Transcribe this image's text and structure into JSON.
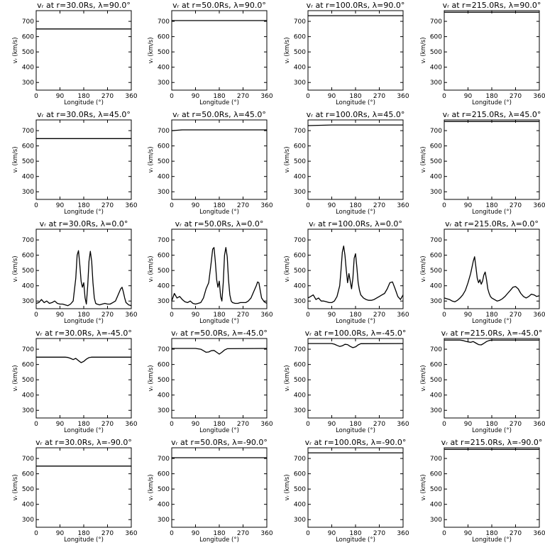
{
  "chart_data": [
    {
      "type": "line",
      "row": 0,
      "col": 0,
      "title": "vᵣ at r=30.0Rs, λ=90.0°",
      "xlabel": "Longitude (°)",
      "ylabel": "vᵣ (km/s)",
      "xlim": [
        0,
        360
      ],
      "ylim": [
        250,
        770
      ],
      "xticks": [
        0,
        90,
        180,
        270,
        360
      ],
      "yticks": [
        300,
        400,
        500,
        600,
        700
      ],
      "x": [
        0,
        360
      ],
      "y": [
        650,
        650
      ]
    },
    {
      "type": "line",
      "row": 0,
      "col": 1,
      "title": "vᵣ at r=50.0Rs, λ=90.0°",
      "xlabel": "Longitude (°)",
      "ylabel": "vᵣ (km/s)",
      "xlim": [
        0,
        360
      ],
      "ylim": [
        250,
        770
      ],
      "xticks": [
        0,
        90,
        180,
        270,
        360
      ],
      "yticks": [
        300,
        400,
        500,
        600,
        700
      ],
      "x": [
        0,
        360
      ],
      "y": [
        705,
        705
      ]
    },
    {
      "type": "line",
      "row": 0,
      "col": 2,
      "title": "vᵣ at r=100.0Rs, λ=90.0°",
      "xlabel": "Longitude (°)",
      "ylabel": "vᵣ (km/s)",
      "xlim": [
        0,
        360
      ],
      "ylim": [
        250,
        770
      ],
      "xticks": [
        0,
        90,
        180,
        270,
        360
      ],
      "yticks": [
        300,
        400,
        500,
        600,
        700
      ],
      "x": [
        0,
        360
      ],
      "y": [
        737,
        737
      ]
    },
    {
      "type": "line",
      "row": 0,
      "col": 3,
      "title": "vᵣ at r=215.0Rs, λ=90.0°",
      "xlabel": "Longitude (°)",
      "ylabel": "vᵣ (km/s)",
      "xlim": [
        0,
        360
      ],
      "ylim": [
        250,
        770
      ],
      "xticks": [
        0,
        90,
        180,
        270,
        360
      ],
      "yticks": [
        300,
        400,
        500,
        600,
        700
      ],
      "x": [
        0,
        360
      ],
      "y": [
        760,
        760
      ]
    },
    {
      "type": "line",
      "row": 1,
      "col": 0,
      "title": "vᵣ at r=30.0Rs, λ=45.0°",
      "xlabel": "Longitude (°)",
      "ylabel": "vᵣ (km/s)",
      "xlim": [
        0,
        360
      ],
      "ylim": [
        250,
        770
      ],
      "xticks": [
        0,
        90,
        180,
        270,
        360
      ],
      "yticks": [
        300,
        400,
        500,
        600,
        700
      ],
      "x": [
        0,
        360
      ],
      "y": [
        648,
        648
      ]
    },
    {
      "type": "line",
      "row": 1,
      "col": 1,
      "title": "vᵣ at r=50.0Rs, λ=45.0°",
      "xlabel": "Longitude (°)",
      "ylabel": "vᵣ (km/s)",
      "xlim": [
        0,
        360
      ],
      "ylim": [
        250,
        770
      ],
      "xticks": [
        0,
        90,
        180,
        270,
        360
      ],
      "yticks": [
        300,
        400,
        500,
        600,
        700
      ],
      "x": [
        0,
        40,
        360
      ],
      "y": [
        700,
        705,
        705
      ]
    },
    {
      "type": "line",
      "row": 1,
      "col": 2,
      "title": "vᵣ at r=100.0Rs, λ=45.0°",
      "xlabel": "Longitude (°)",
      "ylabel": "vᵣ (km/s)",
      "xlim": [
        0,
        360
      ],
      "ylim": [
        250,
        770
      ],
      "xticks": [
        0,
        90,
        180,
        270,
        360
      ],
      "yticks": [
        300,
        400,
        500,
        600,
        700
      ],
      "x": [
        0,
        90,
        360
      ],
      "y": [
        733,
        737,
        737
      ]
    },
    {
      "type": "line",
      "row": 1,
      "col": 3,
      "title": "vᵣ at r=215.0Rs, λ=45.0°",
      "xlabel": "Longitude (°)",
      "ylabel": "vᵣ (km/s)",
      "xlim": [
        0,
        360
      ],
      "ylim": [
        250,
        770
      ],
      "xticks": [
        0,
        90,
        180,
        270,
        360
      ],
      "yticks": [
        300,
        400,
        500,
        600,
        700
      ],
      "x": [
        0,
        360
      ],
      "y": [
        760,
        760
      ]
    },
    {
      "type": "line",
      "row": 2,
      "col": 0,
      "title": "vᵣ at r=30.0Rs, λ=0.0°",
      "xlabel": "Longitude (°)",
      "ylabel": "vᵣ (km/s)",
      "xlim": [
        0,
        360
      ],
      "ylim": [
        250,
        770
      ],
      "xticks": [
        0,
        90,
        180,
        270,
        360
      ],
      "yticks": [
        300,
        400,
        500,
        600,
        700
      ],
      "x": [
        0,
        10,
        20,
        30,
        40,
        50,
        60,
        70,
        80,
        90,
        100,
        110,
        120,
        130,
        140,
        150,
        155,
        160,
        165,
        170,
        175,
        180,
        185,
        190,
        195,
        200,
        205,
        210,
        215,
        220,
        225,
        230,
        240,
        250,
        260,
        270,
        280,
        290,
        300,
        310,
        320,
        325,
        330,
        335,
        340,
        350,
        360
      ],
      "y": [
        285,
        290,
        310,
        290,
        300,
        285,
        290,
        300,
        285,
        280,
        280,
        275,
        270,
        280,
        300,
        450,
        600,
        630,
        540,
        430,
        390,
        420,
        320,
        280,
        400,
        560,
        625,
        560,
        420,
        320,
        285,
        280,
        275,
        280,
        285,
        280,
        280,
        290,
        300,
        340,
        380,
        390,
        360,
        320,
        290,
        275,
        270
      ]
    },
    {
      "type": "line",
      "row": 2,
      "col": 1,
      "title": "vᵣ at r=50.0Rs, λ=0.0°",
      "xlabel": "Longitude (°)",
      "ylabel": "vᵣ (km/s)",
      "xlim": [
        0,
        360
      ],
      "ylim": [
        250,
        770
      ],
      "xticks": [
        0,
        90,
        180,
        270,
        360
      ],
      "yticks": [
        300,
        400,
        500,
        600,
        700
      ],
      "x": [
        0,
        10,
        20,
        30,
        40,
        50,
        60,
        70,
        80,
        90,
        100,
        110,
        120,
        130,
        140,
        150,
        155,
        160,
        165,
        170,
        175,
        180,
        185,
        190,
        195,
        200,
        205,
        210,
        215,
        220,
        225,
        230,
        240,
        250,
        260,
        270,
        280,
        290,
        300,
        310,
        320,
        325,
        330,
        335,
        340,
        350,
        360
      ],
      "y": [
        300,
        350,
        320,
        330,
        310,
        295,
        290,
        300,
        285,
        280,
        285,
        290,
        320,
        380,
        420,
        560,
        640,
        650,
        560,
        440,
        390,
        430,
        330,
        300,
        420,
        600,
        650,
        590,
        440,
        340,
        300,
        290,
        285,
        285,
        290,
        290,
        290,
        300,
        320,
        360,
        400,
        425,
        420,
        370,
        320,
        295,
        285
      ]
    },
    {
      "type": "line",
      "row": 2,
      "col": 2,
      "title": "vᵣ at r=100.0Rs, λ=0.0°",
      "xlabel": "Longitude (°)",
      "ylabel": "vᵣ (km/s)",
      "xlim": [
        0,
        360
      ],
      "ylim": [
        250,
        770
      ],
      "xticks": [
        0,
        90,
        180,
        270,
        360
      ],
      "yticks": [
        300,
        400,
        500,
        600,
        700
      ],
      "x": [
        0,
        10,
        20,
        30,
        40,
        50,
        60,
        70,
        80,
        90,
        100,
        110,
        120,
        125,
        130,
        135,
        140,
        145,
        150,
        155,
        160,
        165,
        170,
        175,
        180,
        185,
        190,
        195,
        200,
        210,
        220,
        230,
        240,
        250,
        260,
        270,
        280,
        290,
        300,
        310,
        320,
        330,
        340,
        350,
        360
      ],
      "y": [
        320,
        330,
        340,
        310,
        320,
        300,
        300,
        295,
        290,
        290,
        300,
        330,
        400,
        500,
        620,
        660,
        600,
        500,
        420,
        480,
        430,
        380,
        450,
        580,
        610,
        520,
        420,
        370,
        340,
        320,
        310,
        305,
        305,
        310,
        320,
        330,
        340,
        350,
        380,
        420,
        425,
        380,
        330,
        310,
        340
      ]
    },
    {
      "type": "line",
      "row": 2,
      "col": 3,
      "title": "vᵣ at r=215.0Rs, λ=0.0°",
      "xlabel": "Longitude (°)",
      "ylabel": "vᵣ (km/s)",
      "xlim": [
        0,
        360
      ],
      "ylim": [
        250,
        770
      ],
      "xticks": [
        0,
        90,
        180,
        270,
        360
      ],
      "yticks": [
        300,
        400,
        500,
        600,
        700
      ],
      "x": [
        0,
        10,
        20,
        30,
        40,
        50,
        60,
        70,
        80,
        90,
        100,
        110,
        115,
        120,
        125,
        130,
        135,
        140,
        145,
        150,
        155,
        160,
        165,
        170,
        175,
        180,
        190,
        200,
        210,
        220,
        230,
        240,
        250,
        260,
        270,
        280,
        290,
        300,
        310,
        320,
        330,
        340,
        350,
        360
      ],
      "y": [
        320,
        315,
        310,
        300,
        295,
        305,
        320,
        340,
        370,
        420,
        480,
        560,
        590,
        520,
        450,
        420,
        440,
        410,
        430,
        470,
        490,
        440,
        380,
        350,
        330,
        320,
        310,
        300,
        305,
        315,
        330,
        350,
        370,
        390,
        395,
        380,
        350,
        330,
        320,
        330,
        345,
        340,
        330,
        335
      ]
    },
    {
      "type": "line",
      "row": 3,
      "col": 0,
      "title": "vᵣ at r=30.0Rs, λ=-45.0°",
      "xlabel": "Longitude (°)",
      "ylabel": "vᵣ (km/s)",
      "xlim": [
        0,
        360
      ],
      "ylim": [
        250,
        770
      ],
      "xticks": [
        0,
        90,
        180,
        270,
        360
      ],
      "yticks": [
        300,
        400,
        500,
        600,
        700
      ],
      "x": [
        0,
        110,
        120,
        130,
        140,
        150,
        160,
        170,
        180,
        190,
        200,
        210,
        360
      ],
      "y": [
        648,
        648,
        646,
        640,
        632,
        640,
        625,
        612,
        620,
        635,
        645,
        648,
        648
      ]
    },
    {
      "type": "line",
      "row": 3,
      "col": 1,
      "title": "vᵣ at r=50.0Rs, λ=-45.0°",
      "xlabel": "Longitude (°)",
      "ylabel": "vᵣ (km/s)",
      "xlim": [
        0,
        360
      ],
      "ylim": [
        250,
        770
      ],
      "xticks": [
        0,
        90,
        180,
        270,
        360
      ],
      "yticks": [
        300,
        400,
        500,
        600,
        700
      ],
      "x": [
        0,
        90,
        110,
        120,
        130,
        140,
        150,
        160,
        170,
        180,
        190,
        200,
        210,
        360
      ],
      "y": [
        705,
        705,
        700,
        690,
        680,
        682,
        690,
        692,
        680,
        668,
        680,
        695,
        703,
        705
      ]
    },
    {
      "type": "line",
      "row": 3,
      "col": 2,
      "title": "vᵣ at r=100.0Rs, λ=-45.0°",
      "xlabel": "Longitude (°)",
      "ylabel": "vᵣ (km/s)",
      "xlim": [
        0,
        360
      ],
      "ylim": [
        250,
        770
      ],
      "xticks": [
        0,
        90,
        180,
        270,
        360
      ],
      "yticks": [
        300,
        400,
        500,
        600,
        700
      ],
      "x": [
        0,
        90,
        100,
        110,
        120,
        130,
        140,
        150,
        160,
        170,
        180,
        190,
        200,
        360
      ],
      "y": [
        737,
        737,
        733,
        725,
        718,
        722,
        732,
        730,
        718,
        710,
        715,
        728,
        736,
        737
      ]
    },
    {
      "type": "line",
      "row": 3,
      "col": 3,
      "title": "vᵣ at r=215.0Rs, λ=-45.0°",
      "xlabel": "Longitude (°)",
      "ylabel": "vᵣ (km/s)",
      "xlim": [
        0,
        360
      ],
      "ylim": [
        250,
        770
      ],
      "xticks": [
        0,
        90,
        180,
        270,
        360
      ],
      "yticks": [
        300,
        400,
        500,
        600,
        700
      ],
      "x": [
        0,
        60,
        70,
        80,
        90,
        100,
        110,
        120,
        130,
        140,
        150,
        160,
        170,
        180,
        360
      ],
      "y": [
        760,
        760,
        757,
        752,
        748,
        745,
        750,
        740,
        730,
        728,
        738,
        750,
        757,
        760,
        760
      ]
    },
    {
      "type": "line",
      "row": 4,
      "col": 0,
      "title": "vᵣ at r=30.0Rs, λ=-90.0°",
      "xlabel": "Longitude (°)",
      "ylabel": "vᵣ (km/s)",
      "xlim": [
        0,
        360
      ],
      "ylim": [
        250,
        770
      ],
      "xticks": [
        0,
        90,
        180,
        270,
        360
      ],
      "yticks": [
        300,
        400,
        500,
        600,
        700
      ],
      "x": [
        0,
        360
      ],
      "y": [
        650,
        650
      ]
    },
    {
      "type": "line",
      "row": 4,
      "col": 1,
      "title": "vᵣ at r=50.0Rs, λ=-90.0°",
      "xlabel": "Longitude (°)",
      "ylabel": "vᵣ (km/s)",
      "xlim": [
        0,
        360
      ],
      "ylim": [
        250,
        770
      ],
      "xticks": [
        0,
        90,
        180,
        270,
        360
      ],
      "yticks": [
        300,
        400,
        500,
        600,
        700
      ],
      "x": [
        0,
        360
      ],
      "y": [
        705,
        705
      ]
    },
    {
      "type": "line",
      "row": 4,
      "col": 2,
      "title": "vᵣ at r=100.0Rs, λ=-90.0°",
      "xlabel": "Longitude (°)",
      "ylabel": "vᵣ (km/s)",
      "xlim": [
        0,
        360
      ],
      "ylim": [
        250,
        770
      ],
      "xticks": [
        0,
        90,
        180,
        270,
        360
      ],
      "yticks": [
        300,
        400,
        500,
        600,
        700
      ],
      "x": [
        0,
        360
      ],
      "y": [
        737,
        737
      ]
    },
    {
      "type": "line",
      "row": 4,
      "col": 3,
      "title": "vᵣ at r=215.0Rs, λ=-90.0°",
      "xlabel": "Longitude (°)",
      "ylabel": "vᵣ (km/s)",
      "xlim": [
        0,
        360
      ],
      "ylim": [
        250,
        770
      ],
      "xticks": [
        0,
        90,
        180,
        270,
        360
      ],
      "yticks": [
        300,
        400,
        500,
        600,
        700
      ],
      "x": [
        0,
        360
      ],
      "y": [
        760,
        760
      ]
    }
  ]
}
